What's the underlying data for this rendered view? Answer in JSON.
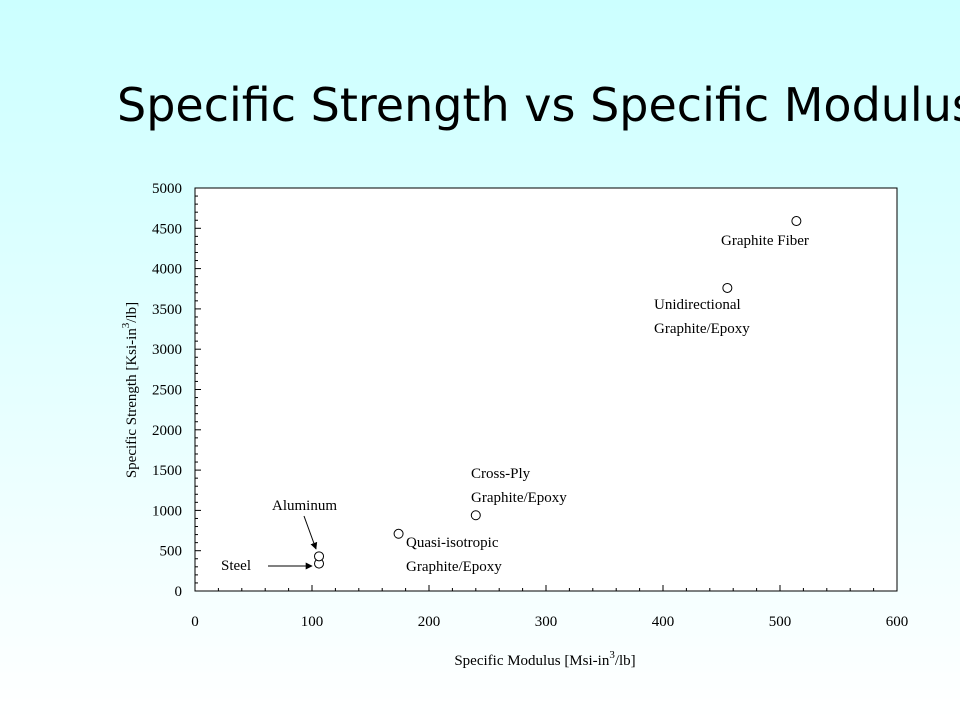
{
  "slide": {
    "title": "Specific Strength vs Specific Modulus"
  },
  "chart_data": {
    "type": "scatter",
    "xlabel": {
      "before": "Specific Modulus  [Msi-in",
      "sup": "3",
      "after": "/lb]"
    },
    "ylabel": {
      "before": "Specific Strength  [Ksi-in",
      "sup": "3",
      "after": "/lb]"
    },
    "xlim": [
      0,
      600
    ],
    "ylim": [
      0,
      5000
    ],
    "xticks": [
      "0",
      "100",
      "200",
      "300",
      "400",
      "500",
      "600"
    ],
    "yticks": [
      "0",
      "500",
      "1000",
      "1500",
      "2000",
      "2500",
      "3000",
      "3500",
      "4000",
      "4500",
      "5000"
    ],
    "grid": false,
    "marker": "open-circle",
    "points": [
      {
        "x": 106,
        "y": 340
      },
      {
        "x": 106,
        "y": 430
      },
      {
        "x": 174,
        "y": 710
      },
      {
        "x": 240,
        "y": 940
      },
      {
        "x": 455,
        "y": 3760
      },
      {
        "x": 514,
        "y": 4590
      }
    ],
    "annotations": [
      {
        "lines": [
          "Steel"
        ]
      },
      {
        "lines": [
          "Aluminum"
        ]
      },
      {
        "lines": [
          "Quasi-isotropic",
          "Graphite/Epoxy"
        ]
      },
      {
        "lines": [
          "Cross-Ply",
          "Graphite/Epoxy"
        ]
      },
      {
        "lines": [
          "Unidirectional",
          "Graphite/Epoxy"
        ]
      },
      {
        "lines": [
          "Graphite Fiber"
        ]
      }
    ]
  }
}
